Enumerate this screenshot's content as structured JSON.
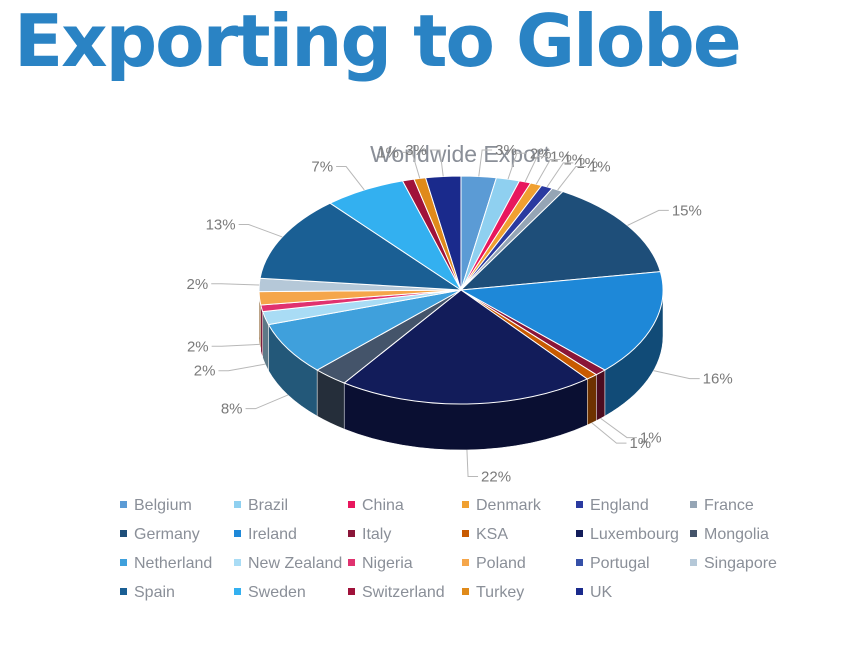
{
  "page": {
    "title": "Exporting to Globe"
  },
  "chart_data": {
    "type": "pie",
    "title": "Worldwide Export",
    "legend_position": "bottom",
    "three_d": true,
    "categories": [
      "Belgium",
      "Brazil",
      "China",
      "Denmark",
      "England",
      "France",
      "Germany",
      "Ireland",
      "Italy",
      "KSA",
      "Luxembourg",
      "Mongolia",
      "Netherland",
      "New Zealand",
      "Nigeria",
      "Poland",
      "Portugal",
      "Singapore",
      "Spain",
      "Sweden",
      "Switzerland",
      "Turkey",
      "UK"
    ],
    "colors": [
      "#5b9bd5",
      "#8fd0f0",
      "#e8175d",
      "#f0a030",
      "#2a3aa0",
      "#95a5b5",
      "#1e4e79",
      "#1e88d8",
      "#8a1538",
      "#c85a00",
      "#121c5a",
      "#44546a",
      "#3fa0dc",
      "#a9dcf5",
      "#e0326f",
      "#f5a64a",
      "#3550a8",
      "#b5c8d8",
      "#1a5f94",
      "#33b0f0",
      "#a0123a",
      "#e08a1a",
      "#1a2a8c"
    ],
    "slices": [
      {
        "name": "Belgium",
        "value": 3,
        "label": "3%"
      },
      {
        "name": "Brazil",
        "value": 2,
        "label": "2%"
      },
      {
        "name": "China",
        "value": 1,
        "label": "1%"
      },
      {
        "name": "Denmark",
        "value": 1,
        "label": "1%"
      },
      {
        "name": "England",
        "value": 1,
        "label": "1%"
      },
      {
        "name": "France",
        "value": 1,
        "label": "1%"
      },
      {
        "name": "Germany",
        "value": 15,
        "label": "15%"
      },
      {
        "name": "Ireland",
        "value": 16,
        "label": "16%"
      },
      {
        "name": "Italy",
        "value": 1,
        "label": "1%"
      },
      {
        "name": "KSA",
        "value": 1,
        "label": "1%"
      },
      {
        "name": "Luxembourg",
        "value": 22,
        "label": "22%"
      },
      {
        "name": "Mongolia",
        "value": 3,
        "label": ""
      },
      {
        "name": "Netherland",
        "value": 8,
        "label": "8%"
      },
      {
        "name": "New Zealand",
        "value": 2,
        "label": "2%"
      },
      {
        "name": "Nigeria",
        "value": 1,
        "label": ""
      },
      {
        "name": "Poland",
        "value": 2,
        "label": "2%"
      },
      {
        "name": "Portugal",
        "value": 0,
        "label": ""
      },
      {
        "name": "Singapore",
        "value": 2,
        "label": "2%"
      },
      {
        "name": "Spain",
        "value": 13,
        "label": "13%"
      },
      {
        "name": "Sweden",
        "value": 7,
        "label": "7%"
      },
      {
        "name": "Switzerland",
        "value": 1,
        "label": ""
      },
      {
        "name": "Turkey",
        "value": 1,
        "label": "1%"
      },
      {
        "name": "UK",
        "value": 3,
        "label": "3%"
      }
    ]
  }
}
